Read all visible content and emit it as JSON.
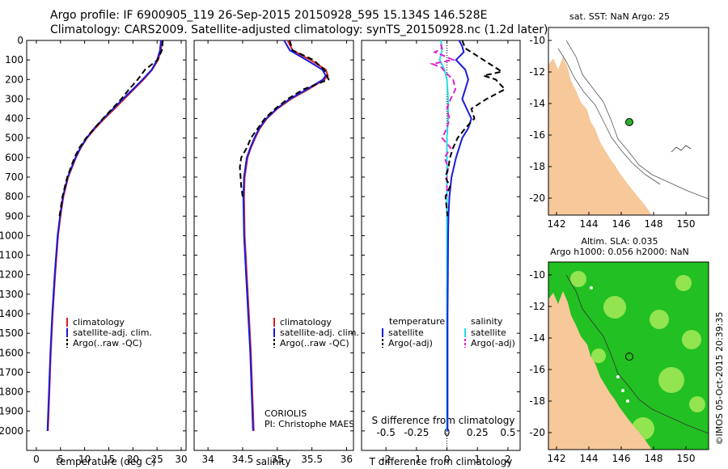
{
  "header": {
    "line1": "Argo profile: IF 6900905_119 26-Sep-2015 20150928_595 15.134S 146.528E",
    "line2": "Climatology: CARS2009. Satellite-adjusted climatology: synTS_20150928.nc (1.2d later)"
  },
  "colors": {
    "climatology": "#d62020",
    "satellite": "#1a1adf",
    "argo": "#000000",
    "sal_satellite": "#22e0e8",
    "sal_argo": "#e020d0",
    "land": "#f7c89a",
    "ocean_high": "#22c022",
    "ocean_low": "#b8f060"
  },
  "chart_data": [
    {
      "type": "line",
      "id": "temperature",
      "xlabel": "temperature (deg C)",
      "xlim": [
        -2,
        31
      ],
      "xticks": [
        0,
        5,
        10,
        15,
        20,
        25,
        30
      ],
      "ylim": [
        2100,
        0
      ],
      "yticks": [
        0,
        100,
        200,
        300,
        400,
        500,
        600,
        700,
        800,
        900,
        1000,
        1100,
        1200,
        1300,
        1400,
        1500,
        1600,
        1700,
        1800,
        1900,
        2000
      ],
      "series": [
        {
          "name": "climatology",
          "color_key": "climatology",
          "dash": false,
          "depth": [
            0,
            50,
            100,
            150,
            200,
            250,
            300,
            350,
            400,
            450,
            500,
            550,
            600,
            700,
            800,
            900,
            1000,
            1200,
            1400,
            1600,
            1800,
            2000
          ],
          "values": [
            26,
            25.8,
            25.2,
            24,
            22.2,
            20.2,
            18.2,
            16.2,
            14.1,
            12.2,
            10.5,
            9.2,
            8.2,
            6.6,
            5.6,
            5,
            4.5,
            3.9,
            3.4,
            3,
            2.7,
            2.4
          ]
        },
        {
          "name": "satellite-adj. clim.",
          "color_key": "satellite",
          "dash": false,
          "depth": [
            0,
            50,
            100,
            150,
            200,
            250,
            300,
            350,
            400,
            450,
            500,
            550,
            600,
            700,
            800,
            900,
            1000,
            1200,
            1400,
            1600,
            1800,
            2000
          ],
          "values": [
            25.8,
            25.6,
            25,
            23.9,
            22,
            20,
            17.9,
            15.9,
            13.9,
            12,
            10.4,
            9.1,
            8.1,
            6.5,
            5.5,
            4.9,
            4.4,
            3.8,
            3.3,
            2.9,
            2.6,
            2.3
          ]
        },
        {
          "name": "Argo(..raw -QC)",
          "color_key": "argo",
          "dash": true,
          "depth": [
            0,
            50,
            100,
            150,
            200,
            250,
            300,
            350,
            400,
            450,
            500,
            550,
            600,
            700,
            800,
            900
          ],
          "values": [
            26.2,
            26,
            25.1,
            22.5,
            21,
            19.2,
            17.6,
            15.7,
            13.8,
            12,
            10.3,
            8.9,
            7.9,
            6.4,
            5.4,
            4.8
          ]
        }
      ]
    },
    {
      "type": "line",
      "id": "salinity",
      "xlabel": "salinity",
      "xlim": [
        33.8,
        36.1
      ],
      "xticks": [
        34,
        34.5,
        35,
        35.5,
        36
      ],
      "ylim": [
        2100,
        0
      ],
      "series": [
        {
          "name": "climatology",
          "color_key": "climatology",
          "dash": false,
          "depth": [
            0,
            50,
            100,
            150,
            180,
            200,
            250,
            300,
            350,
            400,
            450,
            500,
            550,
            600,
            700,
            800,
            1000,
            1200,
            1400,
            1600,
            1800,
            2000
          ],
          "values": [
            35.15,
            35.22,
            35.48,
            35.7,
            35.73,
            35.68,
            35.45,
            35.2,
            35.0,
            34.85,
            34.75,
            34.68,
            34.62,
            34.57,
            34.53,
            34.52,
            34.53,
            34.56,
            34.59,
            34.62,
            34.64,
            34.66
          ]
        },
        {
          "name": "satellite-adj. clim.",
          "color_key": "satellite",
          "dash": false,
          "depth": [
            0,
            50,
            100,
            150,
            180,
            200,
            250,
            300,
            350,
            400,
            450,
            500,
            550,
            600,
            700,
            800,
            1000,
            1200,
            1400,
            1600,
            1800,
            2000
          ],
          "values": [
            35.1,
            35.18,
            35.42,
            35.65,
            35.7,
            35.66,
            35.43,
            35.18,
            34.99,
            34.84,
            34.74,
            34.67,
            34.61,
            34.56,
            34.52,
            34.51,
            34.52,
            34.55,
            34.58,
            34.61,
            34.63,
            34.65
          ]
        },
        {
          "name": "Argo(..raw -QC)",
          "color_key": "argo",
          "dash": true,
          "depth": [
            0,
            50,
            100,
            150,
            200,
            250,
            300,
            350,
            400,
            450,
            500,
            550,
            600,
            650,
            700,
            750,
            800
          ],
          "values": [
            35.18,
            35.22,
            35.52,
            35.68,
            35.74,
            35.38,
            35.15,
            34.97,
            34.82,
            34.72,
            34.62,
            34.56,
            34.48,
            34.46,
            34.47,
            34.48,
            34.5
          ]
        }
      ],
      "annotation": [
        "CORIOLIS",
        "PI: Christophe MAES"
      ]
    },
    {
      "type": "line",
      "id": "differences",
      "xlabel": "T difference from climatology",
      "xlim": [
        -2.8,
        2.4
      ],
      "xticks": [
        -2,
        -1,
        0,
        1,
        2
      ],
      "top_axis_label": "S difference from climatology",
      "top_xlim": [
        -0.7,
        0.6
      ],
      "top_xticks": [
        -0.5,
        -0.25,
        0,
        0.25,
        0.5
      ],
      "top_xticklabels": [
        "-0.5",
        "-0.25",
        "0",
        "0.25",
        "0.5"
      ],
      "ylim": [
        2100,
        0
      ],
      "temperature_series": [
        {
          "name": "satellite",
          "color_key": "satellite",
          "dash": false,
          "depth": [
            0,
            30,
            60,
            100,
            150,
            200,
            250,
            300,
            350,
            400,
            450,
            500,
            550,
            600,
            700,
            800,
            900,
            1000,
            1200,
            1400,
            1600,
            1800,
            2000
          ],
          "values": [
            0.4,
            0.5,
            0.55,
            0.3,
            0.6,
            0.7,
            0.6,
            0.5,
            0.65,
            0.8,
            0.7,
            0.5,
            0.4,
            0.3,
            0.15,
            0.08,
            0.05,
            0.04,
            0.03,
            0.02,
            0.02,
            0.02,
            0.02
          ]
        },
        {
          "name": "Argo(-adj)",
          "color_key": "argo",
          "dash": true,
          "depth": [
            0,
            40,
            80,
            120,
            160,
            180,
            200,
            250,
            300,
            350,
            400,
            450,
            500,
            550,
            600,
            650,
            700,
            750,
            800,
            900
          ],
          "values": [
            0.5,
            0.6,
            1.0,
            1.4,
            1.8,
            1.2,
            1.6,
            1.9,
            1.3,
            0.8,
            0.9,
            0.6,
            0.35,
            0.2,
            0.1,
            0.05,
            -0.05,
            0.1,
            -0.05,
            0.02
          ]
        }
      ],
      "salinity_series": [
        {
          "name": "satellite",
          "color_key": "sal_satellite",
          "dash": false,
          "depth": [
            0,
            50,
            100,
            150,
            200,
            300,
            400,
            500,
            600,
            700,
            800,
            1000,
            1200,
            1500,
            1800,
            2000
          ],
          "values": [
            -0.05,
            -0.04,
            -0.06,
            -0.02,
            0.0,
            0.01,
            0.01,
            0.0,
            0.0,
            0.0,
            0.0,
            0.0,
            0.0,
            0.0,
            0.0,
            0.0
          ]
        },
        {
          "name": "Argo(-adj)",
          "color_key": "sal_argo",
          "dash": true,
          "depth": [
            20,
            40,
            60,
            80,
            100,
            120,
            140,
            160,
            200,
            250,
            300,
            350,
            400,
            450,
            500,
            550,
            600,
            650,
            700,
            750,
            800
          ],
          "values": [
            -0.05,
            -0.04,
            -0.1,
            -0.02,
            0.05,
            -0.12,
            -0.04,
            -0.02,
            0.05,
            0.07,
            0.03,
            0.0,
            0.02,
            0.0,
            -0.04,
            0.03,
            -0.02,
            0.01,
            0.0,
            0.0,
            0.0
          ]
        }
      ],
      "legend_headings": [
        "temperature",
        "salinity"
      ]
    }
  ],
  "legend_labels": [
    "climatology",
    "satellite-adj. clim.",
    "Argo(..raw -QC)"
  ],
  "maps": {
    "top_title": "sat. SST: NaN Argo: 25",
    "bottom_title_1": "Altim. SLA: 0.035",
    "bottom_title_2": "Argo h1000: 0.056 h2000: NaN",
    "x_ticks": [
      "142",
      "144",
      "146",
      "148",
      "150"
    ],
    "y_ticks": [
      "-10",
      "-12",
      "-14",
      "-16",
      "-18",
      "-20"
    ],
    "credit": "©IMOS 05-Oct-2015 20:39:35"
  }
}
